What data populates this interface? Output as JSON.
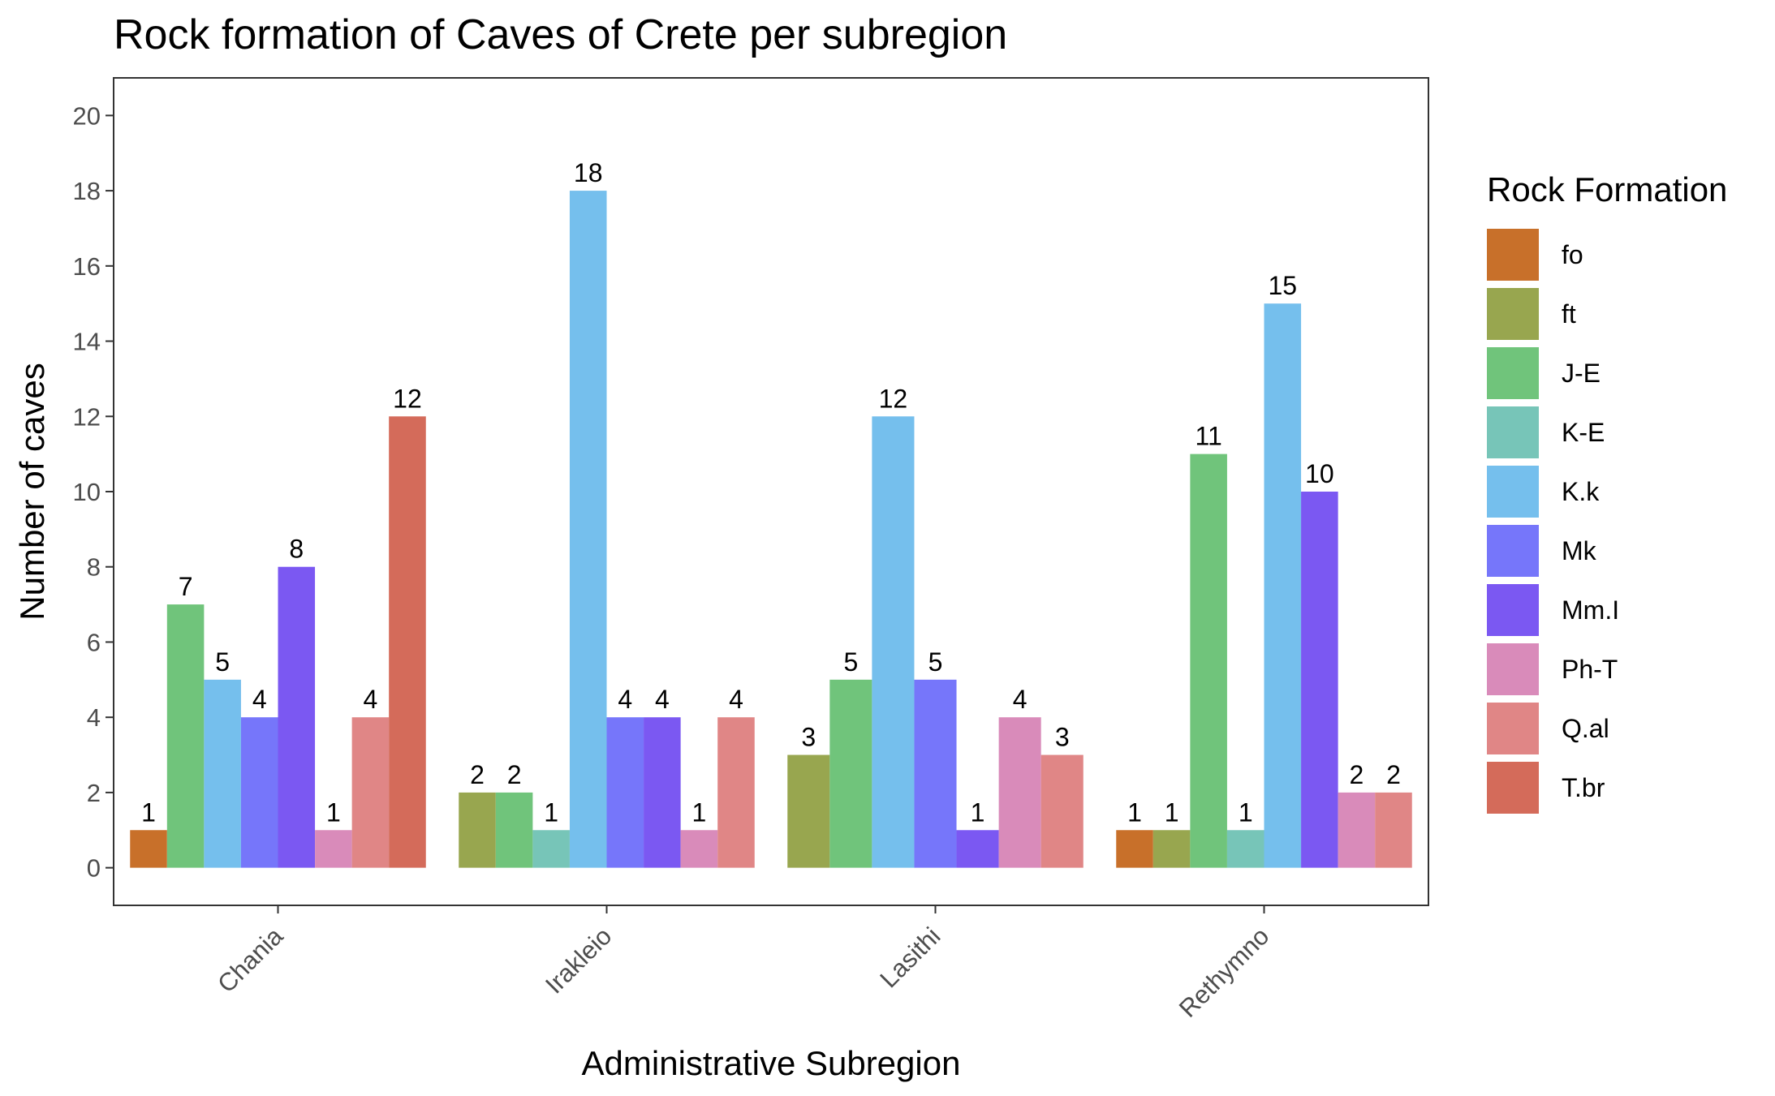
{
  "chart_data": {
    "type": "bar",
    "title": "Rock formation of Caves of Crete per subregion",
    "xlabel": "Administrative Subregion",
    "ylabel": "Number of caves",
    "ylim": [
      -1,
      21
    ],
    "yticks": [
      0,
      2,
      4,
      6,
      8,
      10,
      12,
      14,
      16,
      18,
      20
    ],
    "grid": false,
    "legend_position": "right",
    "legend_title": "Rock Formation",
    "categories": [
      "Chania",
      "Irakleio",
      "Lasithi",
      "Rethymno"
    ],
    "series": [
      {
        "name": "fo",
        "color": "#C8702A",
        "values": [
          1,
          null,
          null,
          1
        ]
      },
      {
        "name": "ft",
        "color": "#98A64F",
        "values": [
          null,
          2,
          3,
          1
        ]
      },
      {
        "name": "J-E",
        "color": "#70C47B",
        "values": [
          7,
          2,
          5,
          11
        ]
      },
      {
        "name": "K-E",
        "color": "#77C5B8",
        "values": [
          null,
          1,
          null,
          1
        ]
      },
      {
        "name": "K.k",
        "color": "#75BFED",
        "values": [
          5,
          18,
          12,
          15
        ]
      },
      {
        "name": "Mk",
        "color": "#7676FA",
        "values": [
          4,
          4,
          5,
          null
        ]
      },
      {
        "name": "Mm.I",
        "color": "#7B58F2",
        "values": [
          8,
          4,
          1,
          10
        ]
      },
      {
        "name": "Ph-T",
        "color": "#D98BBA",
        "values": [
          1,
          1,
          4,
          2
        ]
      },
      {
        "name": "Q.al",
        "color": "#E08686",
        "values": [
          4,
          4,
          3,
          2
        ]
      },
      {
        "name": "T.br",
        "color": "#D46B5A",
        "values": [
          12,
          null,
          null,
          null
        ]
      }
    ]
  }
}
